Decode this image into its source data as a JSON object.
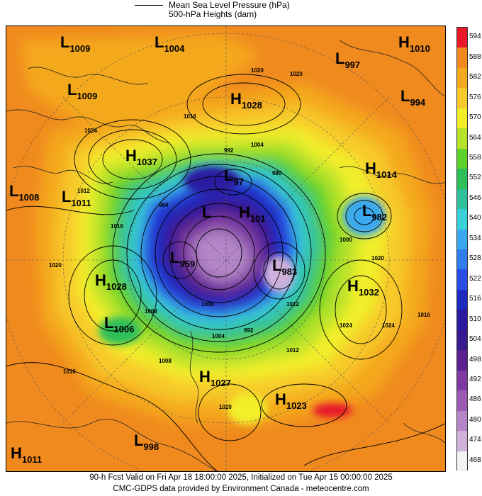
{
  "legend": {
    "line1": "Mean Sea Level Pressure (hPa)",
    "line2": "500-hPa Heights (dam)"
  },
  "colorbar": {
    "labels": [
      "594",
      "588",
      "582",
      "576",
      "570",
      "564",
      "558",
      "552",
      "546",
      "540",
      "534",
      "528",
      "522",
      "516",
      "510",
      "504",
      "498",
      "492",
      "486",
      "480",
      "474",
      "468"
    ],
    "colors": [
      "#e8182a",
      "#f08a1e",
      "#f4a81e",
      "#f7c92a",
      "#f2ee2a",
      "#b5e22a",
      "#5ed12a",
      "#2fbf5a",
      "#2fbf9a",
      "#3ad0d8",
      "#3aa8f0",
      "#2f7ef0",
      "#2a4ee8",
      "#1e2ac0",
      "#2a1aa0",
      "#3a1890",
      "#5a2090",
      "#7e3aa0",
      "#9a5ab4",
      "#b486c8",
      "#cfb2dc",
      "#f2f2f2"
    ]
  },
  "pressure_centers": [
    {
      "type": "L",
      "value": "1009"
    },
    {
      "type": "L",
      "value": "1004"
    },
    {
      "type": "L",
      "value": "997"
    },
    {
      "type": "H",
      "value": "1010"
    },
    {
      "type": "L",
      "value": "1009"
    },
    {
      "type": "H",
      "value": "1028"
    },
    {
      "type": "L",
      "value": "994"
    },
    {
      "type": "H",
      "value": "1037"
    },
    {
      "type": "L",
      "value": "97"
    },
    {
      "type": "H",
      "value": "1014"
    },
    {
      "type": "L",
      "value": "1008"
    },
    {
      "type": "L",
      "value": "1011"
    },
    {
      "type": "L",
      "value": ""
    },
    {
      "type": "H",
      "value": "101"
    },
    {
      "type": "L",
      "value": "982"
    },
    {
      "type": "L",
      "value": "959"
    },
    {
      "type": "L",
      "value": "983"
    },
    {
      "type": "H",
      "value": "1028"
    },
    {
      "type": "H",
      "value": "1032"
    },
    {
      "type": "L",
      "value": "1006"
    },
    {
      "type": "H",
      "value": "1027"
    },
    {
      "type": "H",
      "value": "1023"
    },
    {
      "type": "L",
      "value": "998"
    },
    {
      "type": "H",
      "value": "1011"
    }
  ],
  "isobar_labels": [
    "1020",
    "1016",
    "1024",
    "992",
    "1004",
    "980",
    "1012",
    "1016",
    "984",
    "1000",
    "1020",
    "1020",
    "1024",
    "1024",
    "1016",
    "1012",
    "1000",
    "1008",
    "992",
    "1004",
    "1016",
    "1008",
    "1020",
    "1012",
    "1020"
  ],
  "footer": {
    "line1": "90-h Fcst Valid on Fri Apr 18 18:00:00 2025, Initialized on Tue Apr 15 00:00:00 2025",
    "line2": "CMC-GDPS data provided by Environment Canada - meteocentre.com"
  }
}
